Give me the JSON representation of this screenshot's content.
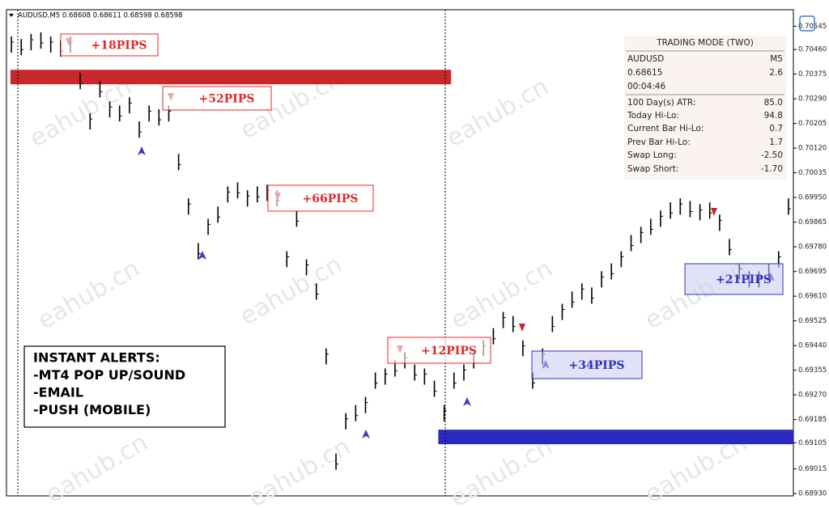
{
  "chart_data": {
    "type": "range-bar",
    "title": "AUDUSD,M5  0.68608 0.68611 0.68598 0.68598",
    "watermark": "eahub.cn",
    "color": "#000000",
    "xlim": [
      0,
      80
    ],
    "ylim": [
      0.68922,
      0.70597
    ],
    "yticks": [
      {
        "value": 0.7054,
        "label": "0.70545"
      },
      {
        "value": 0.7046,
        "label": "0.70460"
      },
      0.70375,
      {
        "value": 0.7029,
        "label": "0.70290"
      },
      0.70205,
      {
        "value": 0.7012,
        "label": "0.70120"
      },
      0.70035,
      {
        "value": 0.6995,
        "label": "0.69950"
      },
      0.69865,
      {
        "value": 0.6978,
        "label": "0.69780"
      },
      0.69695,
      {
        "value": 0.6961,
        "label": "0.69610"
      },
      0.69525,
      {
        "value": 0.6944,
        "label": "0.69440"
      },
      0.69355,
      {
        "value": 0.6927,
        "label": "0.69270"
      },
      0.69185,
      0.69105,
      0.69015,
      {
        "value": 0.6893,
        "label": "0.68930"
      }
    ],
    "high": [
      0.70505,
      0.70496,
      0.70513,
      0.70519,
      0.70505,
      0.70491,
      0.70505,
      0.70379,
      0.7024,
      0.70351,
      0.70281,
      0.70267,
      0.70295,
      0.70212,
      0.70267,
      0.70254,
      0.70267,
      0.701,
      0.69947,
      0.69793,
      0.69877,
      0.69919,
      0.69988,
      0.70002,
      0.69975,
      0.69988,
      0.69994,
      0.69975,
      0.69765,
      0.69905,
      0.69737,
      0.69654,
      0.6943,
      0.69068,
      0.69207,
      0.69235,
      0.69263,
      0.69347,
      0.69361,
      0.69389,
      0.69417,
      0.69375,
      0.69361,
      0.69319,
      0.69235,
      0.69347,
      0.69375,
      0.69417,
      0.69458,
      0.695,
      0.69556,
      0.69542,
      0.69458,
      0.69347,
      0.6943,
      0.69542,
      0.69584,
      0.69626,
      0.69654,
      0.6964,
      0.69696,
      0.69723,
      0.69765,
      0.69821,
      0.69849,
      0.69877,
      0.69905,
      0.69933,
      0.69947,
      0.69938,
      0.69927,
      0.69933,
      0.69891,
      0.69807,
      0.69723,
      0.69696,
      0.69696,
      0.69723,
      0.69765,
      0.69947
    ],
    "low": [
      0.70449,
      0.7044,
      0.70457,
      0.70463,
      0.70449,
      0.70435,
      0.70449,
      0.70323,
      0.70184,
      0.70295,
      0.70226,
      0.70212,
      0.7024,
      0.70156,
      0.70212,
      0.70198,
      0.70212,
      0.70044,
      0.69891,
      0.69737,
      0.69821,
      0.69863,
      0.69933,
      0.69947,
      0.69919,
      0.69933,
      0.69938,
      0.69919,
      0.6971,
      0.69849,
      0.69682,
      0.69598,
      0.69375,
      0.69012,
      0.69151,
      0.69179,
      0.69207,
      0.69291,
      0.69305,
      0.69333,
      0.69361,
      0.69319,
      0.69305,
      0.69263,
      0.69179,
      0.69291,
      0.69319,
      0.69361,
      0.69403,
      0.69444,
      0.695,
      0.69486,
      0.69403,
      0.69291,
      0.69375,
      0.69486,
      0.69528,
      0.6957,
      0.69598,
      0.69584,
      0.6964,
      0.69668,
      0.6971,
      0.69765,
      0.69793,
      0.69821,
      0.69849,
      0.69877,
      0.69891,
      0.69882,
      0.69871,
      0.69877,
      0.69835,
      0.69751,
      0.69668,
      0.6964,
      0.6964,
      0.69668,
      0.6971,
      0.69891
    ],
    "zones": [
      {
        "color": "#c8282c",
        "from": 0.7039,
        "to": 0.7034,
        "start": 0.4,
        "end": 45.2
      },
      {
        "color": "#2a2ac0",
        "from": 0.6915,
        "to": 0.691,
        "start": 43.9,
        "end": 80
      }
    ],
    "annotations": [
      {
        "text": "+18PIPS",
        "color": "#e02828"
      },
      {
        "text": "+52PIPS",
        "color": "#e02828"
      },
      {
        "text": "+66PIPS",
        "color": "#e02828"
      },
      {
        "text": "+12PIPS",
        "color": "#e02828"
      },
      {
        "text": "+34PIPS",
        "color": "#3232c0"
      },
      {
        "text": "+21PIPS",
        "color": "#3232c0"
      }
    ],
    "alerts": [
      "INSTANT ALERTS:",
      "-MT4 POP UP/SOUND",
      "-EMAIL",
      "-PUSH (MOBILE)"
    ],
    "panel": {
      "title": "TRADING MODE (TWO)",
      "rows": [
        [
          "AUDUSD",
          "M5"
        ],
        [
          "0.68615",
          "2.6"
        ],
        [
          "00:04:46",
          ""
        ],
        [
          "100 Day(s) ATR:",
          "85.0"
        ],
        [
          "Today Hi-Lo:",
          "94.8"
        ],
        [
          "Current Bar Hi-Lo:",
          "0.7"
        ],
        [
          "Prev Bar Hi-Lo:",
          "1.7"
        ],
        [
          "Swap Long:",
          "-2.50"
        ],
        [
          "Swap Short:",
          "-1.70"
        ]
      ]
    }
  }
}
